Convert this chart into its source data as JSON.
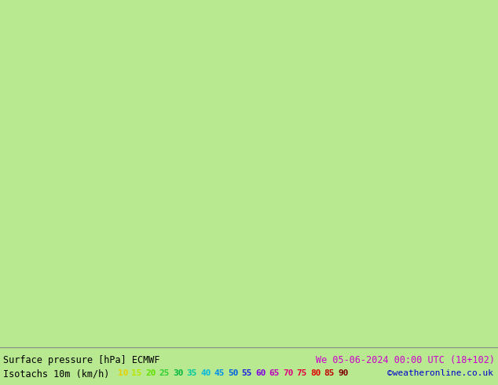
{
  "title_line1": "Surface pressure [hPa] ECMWF",
  "date_str": "We 05-06-2024 00:00 UTC (18+102)",
  "title_line2": "Isotachs 10m (km/h)",
  "copyright": "©weatheronline.co.uk",
  "isotach_values": [
    "10",
    "15",
    "20",
    "25",
    "30",
    "35",
    "40",
    "45",
    "50",
    "55",
    "60",
    "65",
    "70",
    "75",
    "80",
    "85",
    "90"
  ],
  "isotach_colors": [
    "#e8d000",
    "#b8e800",
    "#60e000",
    "#30d030",
    "#00b840",
    "#00c8a0",
    "#00b8e0",
    "#0090e8",
    "#0060e0",
    "#2020e0",
    "#8000e0",
    "#c000c0",
    "#e00080",
    "#e00040",
    "#e00000",
    "#c00000",
    "#800000"
  ],
  "fig_width": 6.34,
  "fig_height": 4.9,
  "map_bg_color": "#b8e890",
  "bottom_bg_color": "#c8c8c8",
  "text_color": "#000000",
  "date_color": "#cc00cc",
  "copyright_color": "#0000cc",
  "title1_fontsize": 8.5,
  "title2_fontsize": 8.5,
  "legend_fontsize": 8.0
}
